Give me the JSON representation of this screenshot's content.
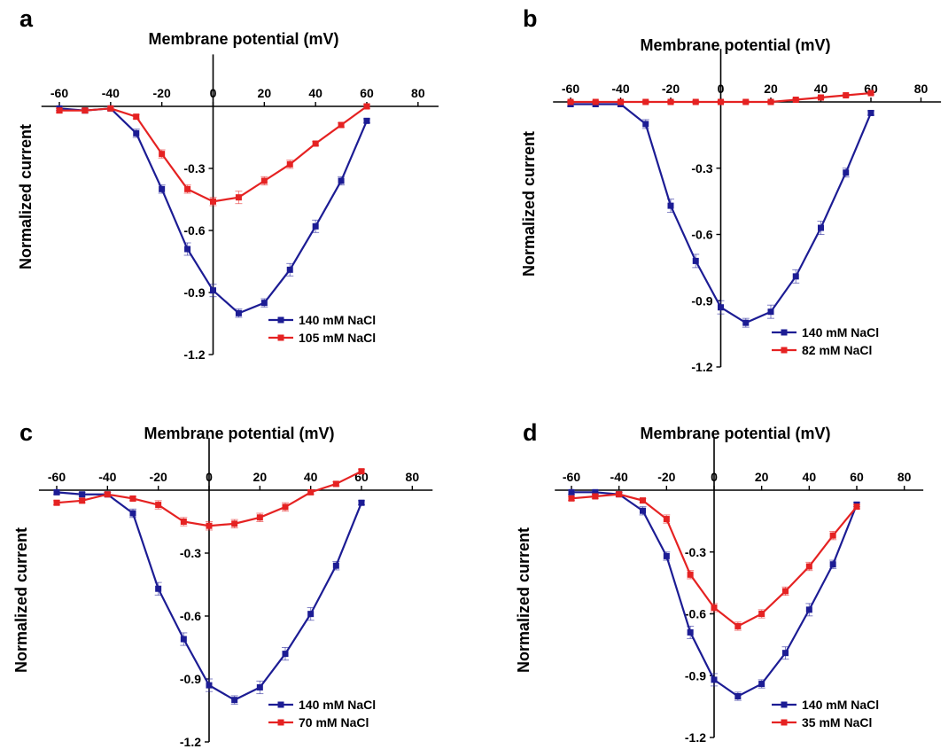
{
  "chart_data": [
    {
      "type": "line",
      "panel": "a",
      "xlabel": "Membrane potential  (mV)",
      "ylabel": "Normalized current",
      "xlim": [
        -67,
        88
      ],
      "ylim": [
        -1.2,
        0.08
      ],
      "xticks": [
        -60,
        -40,
        -20,
        0,
        20,
        40,
        60,
        80
      ],
      "yticks": [
        -0.3,
        -0.6,
        -0.9,
        -1.2
      ],
      "legend_position": "bottom-right",
      "grid": false,
      "x": [
        -60,
        -50,
        -40,
        -30,
        -20,
        -10,
        0,
        10,
        20,
        30,
        40,
        50,
        60
      ],
      "series": [
        {
          "name": "140 mM NaCl",
          "color": "#1c1c94",
          "values": [
            -0.01,
            -0.02,
            -0.01,
            -0.13,
            -0.4,
            -0.69,
            -0.89,
            -1.0,
            -0.95,
            -0.79,
            -0.58,
            -0.36,
            -0.07
          ],
          "errors": [
            0.01,
            0.01,
            0.01,
            0.02,
            0.02,
            0.03,
            0.03,
            0.02,
            0.02,
            0.03,
            0.03,
            0.02,
            0.01
          ]
        },
        {
          "name": "105 mM NaCl",
          "color": "#e52222",
          "values": [
            -0.02,
            -0.02,
            -0.01,
            -0.05,
            -0.23,
            -0.4,
            -0.46,
            -0.44,
            -0.36,
            -0.28,
            -0.18,
            -0.09,
            0.0
          ],
          "errors": [
            0.01,
            0.01,
            0.01,
            0.01,
            0.02,
            0.02,
            0.02,
            0.03,
            0.02,
            0.02,
            0.01,
            0.01,
            0.01
          ]
        }
      ]
    },
    {
      "type": "line",
      "panel": "b",
      "xlabel": "Membrane potential  (mV)",
      "ylabel": "Normalized current",
      "xlim": [
        -67,
        88
      ],
      "ylim": [
        -1.2,
        0.08
      ],
      "xticks": [
        -60,
        -40,
        -20,
        0,
        20,
        40,
        60,
        80
      ],
      "yticks": [
        -0.3,
        -0.6,
        -0.9,
        -1.2
      ],
      "legend_position": "bottom-right",
      "grid": false,
      "x": [
        -60,
        -50,
        -40,
        -30,
        -20,
        -10,
        0,
        10,
        20,
        30,
        40,
        50,
        60
      ],
      "series": [
        {
          "name": "140 mM NaCl",
          "color": "#1c1c94",
          "values": [
            -0.01,
            -0.01,
            -0.01,
            -0.1,
            -0.47,
            -0.72,
            -0.93,
            -1.0,
            -0.95,
            -0.79,
            -0.57,
            -0.32,
            -0.05
          ],
          "errors": [
            0.01,
            0.01,
            0.01,
            0.02,
            0.03,
            0.03,
            0.03,
            0.02,
            0.03,
            0.03,
            0.03,
            0.02,
            0.01
          ]
        },
        {
          "name": "82 mM NaCl",
          "color": "#e52222",
          "values": [
            0.0,
            0.0,
            0.0,
            0.0,
            0.0,
            0.0,
            0.0,
            0.0,
            0.0,
            0.01,
            0.02,
            0.03,
            0.04
          ],
          "errors": [
            0.005,
            0.005,
            0.005,
            0.005,
            0.005,
            0.005,
            0.005,
            0.005,
            0.005,
            0.005,
            0.005,
            0.005,
            0.005
          ]
        }
      ]
    },
    {
      "type": "line",
      "panel": "c",
      "xlabel": "Membrane potential  (mV)",
      "ylabel": "Normalized current",
      "xlim": [
        -67,
        88
      ],
      "ylim": [
        -1.2,
        0.08
      ],
      "xticks": [
        -60,
        -40,
        -20,
        0,
        20,
        40,
        60,
        80
      ],
      "yticks": [
        -0.3,
        -0.6,
        -0.9,
        -1.2
      ],
      "legend_position": "bottom-right",
      "grid": false,
      "x": [
        -60,
        -50,
        -40,
        -30,
        -20,
        -10,
        0,
        10,
        20,
        30,
        40,
        50,
        60
      ],
      "series": [
        {
          "name": "140 mM NaCl",
          "color": "#1c1c94",
          "values": [
            -0.01,
            -0.02,
            -0.02,
            -0.11,
            -0.47,
            -0.71,
            -0.93,
            -1.0,
            -0.94,
            -0.78,
            -0.59,
            -0.36,
            -0.06
          ],
          "errors": [
            0.01,
            0.01,
            0.01,
            0.02,
            0.03,
            0.03,
            0.03,
            0.02,
            0.03,
            0.03,
            0.03,
            0.02,
            0.01
          ]
        },
        {
          "name": "70 mM NaCl",
          "color": "#e52222",
          "values": [
            -0.06,
            -0.05,
            -0.02,
            -0.04,
            -0.07,
            -0.15,
            -0.17,
            -0.16,
            -0.13,
            -0.08,
            -0.01,
            0.03,
            0.09
          ],
          "errors": [
            0.01,
            0.01,
            0.01,
            0.01,
            0.02,
            0.02,
            0.02,
            0.02,
            0.02,
            0.02,
            0.01,
            0.01,
            0.01
          ]
        }
      ]
    },
    {
      "type": "line",
      "panel": "d",
      "xlabel": "Membrane potential  (mV)",
      "ylabel": "Normalized current",
      "xlim": [
        -67,
        88
      ],
      "ylim": [
        -1.2,
        0.08
      ],
      "xticks": [
        -60,
        -40,
        -20,
        0,
        20,
        40,
        60,
        80
      ],
      "yticks": [
        -0.3,
        -0.6,
        -0.9,
        -1.2
      ],
      "legend_position": "bottom-right",
      "grid": false,
      "x": [
        -60,
        -50,
        -40,
        -30,
        -20,
        -10,
        0,
        10,
        20,
        30,
        40,
        50,
        60
      ],
      "series": [
        {
          "name": "140 mM NaCl",
          "color": "#1c1c94",
          "values": [
            -0.01,
            -0.01,
            -0.02,
            -0.1,
            -0.32,
            -0.69,
            -0.92,
            -1.0,
            -0.94,
            -0.79,
            -0.58,
            -0.36,
            -0.07
          ],
          "errors": [
            0.01,
            0.01,
            0.01,
            0.02,
            0.02,
            0.03,
            0.03,
            0.02,
            0.02,
            0.03,
            0.03,
            0.02,
            0.01
          ]
        },
        {
          "name": "35 mM NaCl",
          "color": "#e52222",
          "values": [
            -0.04,
            -0.03,
            -0.02,
            -0.05,
            -0.14,
            -0.41,
            -0.57,
            -0.66,
            -0.6,
            -0.49,
            -0.37,
            -0.22,
            -0.08
          ],
          "errors": [
            0.01,
            0.01,
            0.01,
            0.01,
            0.02,
            0.02,
            0.02,
            0.02,
            0.02,
            0.02,
            0.02,
            0.02,
            0.01
          ]
        }
      ]
    }
  ]
}
